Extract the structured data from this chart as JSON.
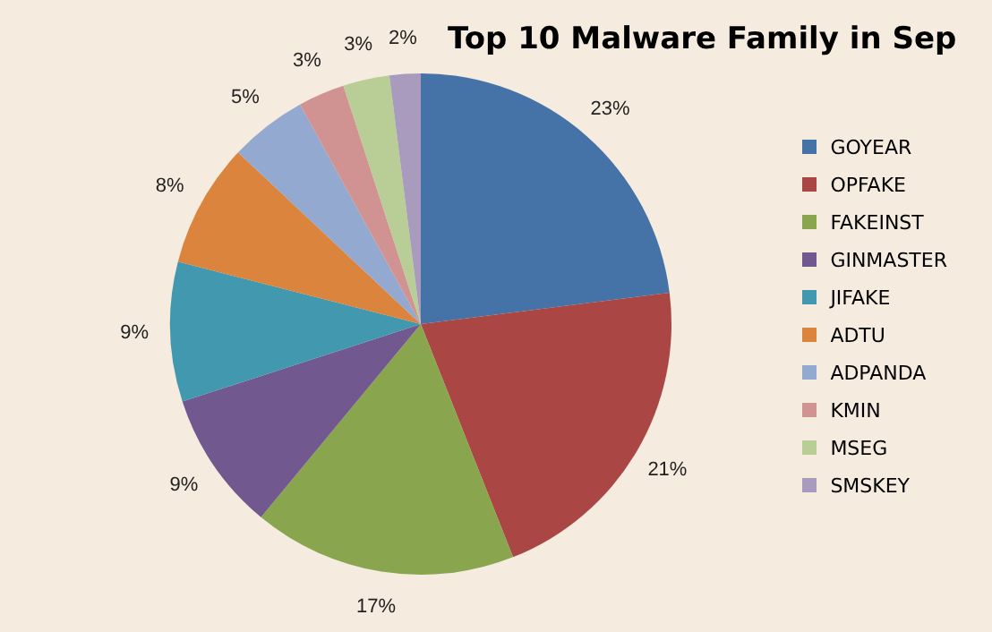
{
  "chart_data": {
    "type": "pie",
    "title": "Top 10 Malware Family in Sep",
    "categories": [
      "GOYEAR",
      "OPFAKE",
      "FAKEINST",
      "GINMASTER",
      "JIFAKE",
      "ADTU",
      "ADPANDA",
      "KMIN",
      "MSEG",
      "SMSKEY"
    ],
    "values": [
      23,
      21,
      17,
      9,
      9,
      8,
      5,
      3,
      3,
      2
    ],
    "value_labels": [
      "23%",
      "21%",
      "17%",
      "9%",
      "9%",
      "8%",
      "5%",
      "3%",
      "3%",
      "2%"
    ],
    "colors": [
      "#4572a7",
      "#aa4643",
      "#89a54e",
      "#71588f",
      "#4198af",
      "#db843d",
      "#93a9cf",
      "#d19392",
      "#b9cd96",
      "#a99bbd"
    ],
    "legend": "right"
  }
}
